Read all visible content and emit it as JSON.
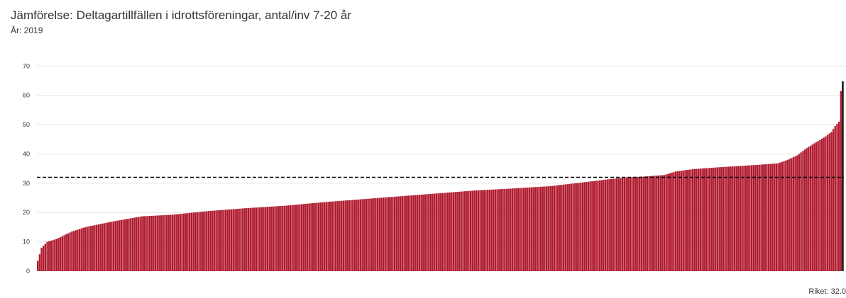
{
  "chart_data": {
    "type": "bar",
    "title": "Jämförelse: Deltagartillfällen i idrottsföreningar, antal/inv 7-20 år",
    "subtitle": "År: 2019",
    "ylim": [
      0,
      72
    ],
    "yticks": [
      0,
      10,
      20,
      30,
      40,
      50,
      60,
      70
    ],
    "grid": true,
    "colors": {
      "bar": "#b01a2e",
      "highlight": "#000000",
      "grid": "#e6e6e6",
      "reference": "#000000"
    },
    "reference_line": {
      "value": 32.0,
      "label": "Riket: 32.0"
    },
    "anchors": [
      [
        0,
        3.5
      ],
      [
        2,
        8.0
      ],
      [
        5,
        10.0
      ],
      [
        10,
        11.0
      ],
      [
        18,
        13.5
      ],
      [
        25,
        15.0
      ],
      [
        40,
        17.0
      ],
      [
        55,
        18.7
      ],
      [
        70,
        19.2
      ],
      [
        90,
        20.5
      ],
      [
        110,
        21.5
      ],
      [
        130,
        22.3
      ],
      [
        150,
        23.5
      ],
      [
        170,
        24.5
      ],
      [
        190,
        25.5
      ],
      [
        210,
        26.5
      ],
      [
        230,
        27.5
      ],
      [
        250,
        28.2
      ],
      [
        270,
        29.0
      ],
      [
        290,
        30.5
      ],
      [
        300,
        31.3
      ],
      [
        310,
        32.0
      ],
      [
        320,
        32.3
      ],
      [
        330,
        32.8
      ],
      [
        336,
        34.0
      ],
      [
        345,
        34.8
      ],
      [
        360,
        35.5
      ],
      [
        380,
        36.3
      ],
      [
        390,
        36.8
      ],
      [
        395,
        38.0
      ],
      [
        400,
        39.5
      ],
      [
        405,
        42.0
      ],
      [
        410,
        44.0
      ],
      [
        415,
        46.0
      ],
      [
        418,
        47.5
      ],
      [
        420,
        49.5
      ],
      [
        422,
        51.0
      ],
      [
        423,
        61.5
      ]
    ],
    "highlight": {
      "value": 64.8
    }
  }
}
